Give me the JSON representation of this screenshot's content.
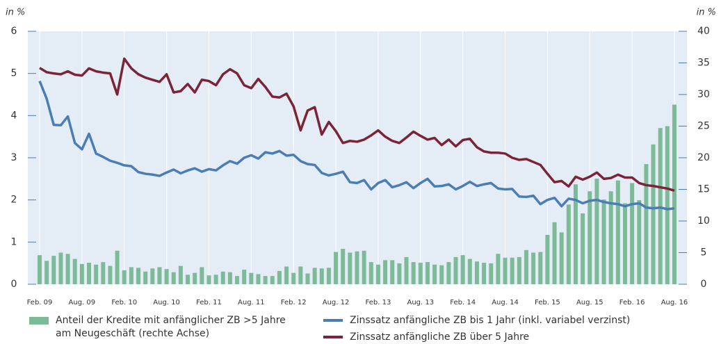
{
  "chart_data": {
    "type": "combo",
    "ylabel": "in %",
    "y2label": "in %",
    "categories": [
      "Feb. 09",
      null,
      null,
      null,
      null,
      null,
      "Aug. 09",
      null,
      null,
      null,
      null,
      null,
      "Feb. 10",
      null,
      null,
      null,
      null,
      null,
      "Aug. 10",
      null,
      null,
      null,
      null,
      null,
      "Feb. 11",
      null,
      null,
      null,
      null,
      null,
      "Aug. 11",
      null,
      null,
      null,
      null,
      null,
      "Feb. 12",
      null,
      null,
      null,
      null,
      null,
      "Aug. 12",
      null,
      null,
      null,
      null,
      null,
      "Feb. 13",
      null,
      null,
      null,
      null,
      null,
      "Aug. 13",
      null,
      null,
      null,
      null,
      null,
      "Feb. 14",
      null,
      null,
      null,
      null,
      null,
      "Aug. 14",
      null,
      null,
      null,
      null,
      null,
      "Feb. 15",
      null,
      null,
      null,
      null,
      null,
      "Aug. 15",
      null,
      null,
      null,
      null,
      null,
      "Feb. 16",
      null,
      null,
      null,
      null,
      null,
      "Aug. 16"
    ],
    "ylim": [
      0,
      6
    ],
    "yticks": [
      0,
      1,
      2,
      3,
      4,
      5,
      6
    ],
    "y2lim": [
      0,
      40
    ],
    "y2ticks": [
      0,
      5,
      10,
      15,
      20,
      25,
      30,
      35,
      40
    ],
    "series": [
      {
        "name": "Anteil der Kredite mit anfänglicher ZB >5 Jahre am Neugeschäft (rechte Achse)",
        "type": "bar",
        "axis": "y2",
        "color": "#7dba97",
        "values": [
          4.6,
          3.7,
          4.5,
          5.0,
          4.8,
          4.0,
          3.2,
          3.4,
          3.1,
          3.5,
          2.9,
          5.3,
          2.2,
          2.7,
          2.6,
          2.0,
          2.5,
          2.7,
          2.4,
          1.9,
          2.9,
          1.5,
          1.8,
          2.7,
          1.4,
          1.5,
          2.0,
          1.9,
          1.3,
          2.3,
          1.8,
          1.6,
          1.3,
          1.3,
          2.1,
          2.8,
          1.8,
          2.8,
          1.7,
          2.6,
          2.5,
          2.6,
          5.1,
          5.6,
          5.0,
          5.2,
          5.3,
          3.5,
          3.1,
          3.8,
          3.8,
          3.3,
          4.3,
          3.5,
          3.4,
          3.5,
          3.1,
          3.0,
          3.5,
          4.3,
          4.6,
          4.0,
          3.6,
          3.4,
          3.3,
          4.8,
          4.2,
          4.2,
          4.3,
          5.4,
          5.0,
          5.1,
          7.8,
          9.8,
          8.2,
          12.6,
          15.8,
          11.2,
          14.7,
          16.7,
          13.4,
          14.7,
          16.4,
          12.8,
          16.0,
          13.3,
          19.0,
          22.1,
          24.7,
          25.0,
          28.4
        ]
      },
      {
        "name": "Zinssatz anfängliche ZB bis 1 Jahr (inkl. variabel verzinst)",
        "type": "line",
        "axis": "y",
        "color": "#4a7db5",
        "values": [
          4.82,
          4.4,
          3.78,
          3.77,
          3.98,
          3.35,
          3.2,
          3.57,
          3.1,
          3.02,
          2.93,
          2.88,
          2.82,
          2.8,
          2.66,
          2.62,
          2.6,
          2.57,
          2.65,
          2.72,
          2.63,
          2.7,
          2.75,
          2.67,
          2.73,
          2.7,
          2.82,
          2.92,
          2.86,
          3.0,
          3.06,
          2.98,
          3.13,
          3.1,
          3.16,
          3.05,
          3.07,
          2.92,
          2.85,
          2.83,
          2.64,
          2.58,
          2.62,
          2.67,
          2.42,
          2.4,
          2.47,
          2.25,
          2.4,
          2.47,
          2.3,
          2.35,
          2.42,
          2.28,
          2.4,
          2.5,
          2.32,
          2.33,
          2.37,
          2.25,
          2.33,
          2.43,
          2.33,
          2.37,
          2.4,
          2.27,
          2.25,
          2.26,
          2.08,
          2.07,
          2.1,
          1.9,
          2.0,
          2.05,
          1.85,
          2.03,
          2.0,
          1.92,
          1.98,
          2.0,
          1.95,
          1.92,
          1.9,
          1.85,
          1.9,
          1.92,
          1.82,
          1.8,
          1.82,
          1.78,
          1.8
        ]
      },
      {
        "name": "Zinssatz anfängliche ZB über 5 Jahre",
        "type": "line",
        "axis": "y",
        "color": "#7b2437",
        "values": [
          5.13,
          5.03,
          5.0,
          4.98,
          5.05,
          4.97,
          4.95,
          5.12,
          5.05,
          5.02,
          5.0,
          4.5,
          5.35,
          5.12,
          4.98,
          4.9,
          4.85,
          4.8,
          4.98,
          4.55,
          4.58,
          4.75,
          4.55,
          4.85,
          4.82,
          4.72,
          4.98,
          5.1,
          5.0,
          4.72,
          4.65,
          4.87,
          4.68,
          4.45,
          4.43,
          4.52,
          4.22,
          3.65,
          4.12,
          4.2,
          3.55,
          3.85,
          3.63,
          3.35,
          3.4,
          3.38,
          3.43,
          3.53,
          3.65,
          3.5,
          3.4,
          3.35,
          3.48,
          3.62,
          3.52,
          3.43,
          3.47,
          3.3,
          3.43,
          3.27,
          3.42,
          3.45,
          3.25,
          3.15,
          3.12,
          3.12,
          3.1,
          3.0,
          2.95,
          2.97,
          2.9,
          2.83,
          2.62,
          2.42,
          2.45,
          2.32,
          2.55,
          2.48,
          2.55,
          2.65,
          2.5,
          2.52,
          2.6,
          2.53,
          2.53,
          2.4,
          2.35,
          2.33,
          2.3,
          2.27,
          2.22
        ]
      }
    ]
  }
}
